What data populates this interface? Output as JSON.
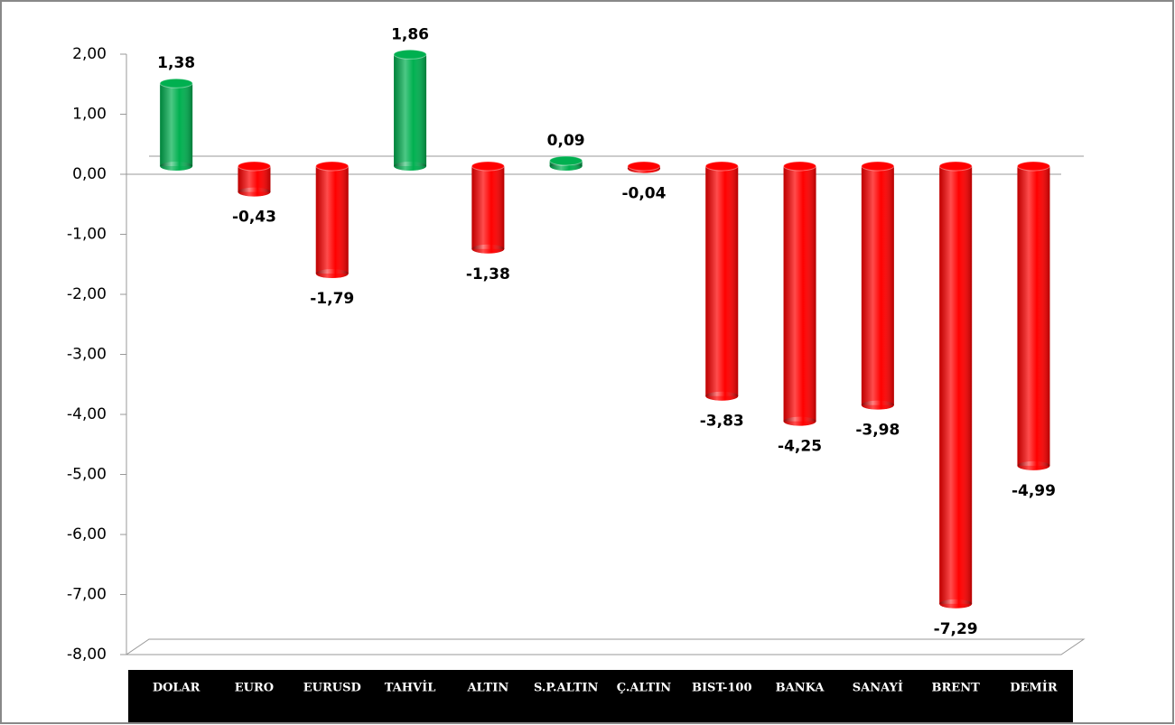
{
  "chart_data": {
    "type": "bar",
    "categories": [
      "DOLAR",
      "EURO",
      "EURUSD",
      "TAHVİL",
      "ALTIN",
      "S.P.ALTIN",
      "Ç.ALTIN",
      "BIST-100",
      "BANKA",
      "SANAYİ",
      "BRENT",
      "DEMİR"
    ],
    "values": [
      1.38,
      -0.43,
      -1.79,
      1.86,
      -1.38,
      0.09,
      -0.04,
      -3.83,
      -4.25,
      -3.98,
      -7.29,
      -4.99
    ],
    "value_labels": [
      "1,38",
      "-0,43",
      "-1,79",
      "1,86",
      "-1,38",
      "0,09",
      "-0,04",
      "-3,83",
      "-4,25",
      "-3,98",
      "-7,29",
      "-4,99"
    ],
    "colors": [
      "#00b050",
      "#ff0000",
      "#ff0000",
      "#00b050",
      "#ff0000",
      "#00b050",
      "#ff0000",
      "#ff0000",
      "#ff0000",
      "#ff0000",
      "#ff0000",
      "#ff0000"
    ],
    "ylim": [
      -8,
      2
    ],
    "yticks": [
      {
        "value": 2,
        "label": "2,00"
      },
      {
        "value": 1,
        "label": "1,00"
      },
      {
        "value": 0,
        "label": "0,00"
      },
      {
        "value": -1,
        "label": "-1,00"
      },
      {
        "value": -2,
        "label": "-2,00"
      },
      {
        "value": -3,
        "label": "-3,00"
      },
      {
        "value": -4,
        "label": "-4,00"
      },
      {
        "value": -5,
        "label": "-5,00"
      },
      {
        "value": -6,
        "label": "-6,00"
      },
      {
        "value": -7,
        "label": "-7,00"
      },
      {
        "value": -8,
        "label": "-8,00"
      }
    ]
  }
}
